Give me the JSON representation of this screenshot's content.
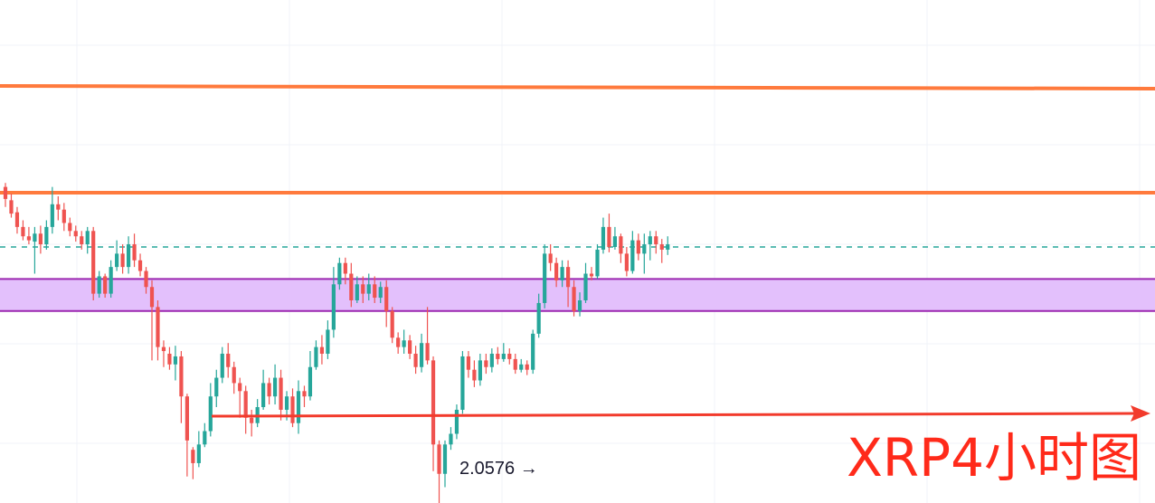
{
  "chart_data": {
    "type": "candlestick",
    "title": "XRP4小时图",
    "low_annotation": {
      "value": "2.0576",
      "arrow": "→"
    },
    "price_range_estimate": [
      2.04,
      2.4
    ],
    "grid": true,
    "resistance_lines": [
      2.38,
      2.3
    ],
    "zone": {
      "top": 2.236,
      "bottom": 2.212
    },
    "current_price_line": 2.26,
    "support_line": 2.1,
    "colors": {
      "up": "#26a69a",
      "down": "#ef5350",
      "wick_up": "#26a69a",
      "wick_down": "#ef5350",
      "zone_fill": "#e1bdfc",
      "zone_border": "#9c27b0",
      "resistance": "#ff7a3d",
      "current": "#26a69a",
      "support": "#f23b2c",
      "title": "#ff2a1a",
      "grid": "#f0f3f8"
    },
    "candles": [
      [
        2.305,
        2.296,
        2.308,
        2.29
      ],
      [
        2.295,
        2.285,
        2.3,
        2.282
      ],
      [
        2.286,
        2.275,
        2.29,
        2.27
      ],
      [
        2.275,
        2.268,
        2.28,
        2.265
      ],
      [
        2.268,
        2.265,
        2.275,
        2.262
      ],
      [
        2.264,
        2.27,
        2.275,
        2.24
      ],
      [
        2.27,
        2.262,
        2.276,
        2.255
      ],
      [
        2.262,
        2.275,
        2.28,
        2.258
      ],
      [
        2.275,
        2.292,
        2.305,
        2.27
      ],
      [
        2.292,
        2.288,
        2.298,
        2.28
      ],
      [
        2.288,
        2.278,
        2.293,
        2.272
      ],
      [
        2.278,
        2.272,
        2.282,
        2.268
      ],
      [
        2.272,
        2.268,
        2.276,
        2.264
      ],
      [
        2.268,
        2.262,
        2.272,
        2.258
      ],
      [
        2.262,
        2.272,
        2.275,
        2.255
      ],
      [
        2.272,
        2.225,
        2.275,
        2.22
      ],
      [
        2.225,
        2.238,
        2.242,
        2.222
      ],
      [
        2.238,
        2.225,
        2.24,
        2.222
      ],
      [
        2.225,
        2.245,
        2.25,
        2.222
      ],
      [
        2.245,
        2.255,
        2.265,
        2.242
      ],
      [
        2.255,
        2.245,
        2.262,
        2.24
      ],
      [
        2.245,
        2.262,
        2.268,
        2.24
      ],
      [
        2.262,
        2.25,
        2.27,
        2.245
      ],
      [
        2.25,
        2.242,
        2.255,
        2.238
      ],
      [
        2.242,
        2.23,
        2.245,
        2.225
      ],
      [
        2.23,
        2.215,
        2.235,
        2.175
      ],
      [
        2.215,
        2.185,
        2.22,
        2.175
      ],
      [
        2.185,
        2.182,
        2.19,
        2.17
      ],
      [
        2.18,
        2.172,
        2.185,
        2.168
      ],
      [
        2.172,
        2.178,
        2.186,
        2.16
      ],
      [
        2.178,
        2.148,
        2.182,
        2.128
      ],
      [
        2.148,
        2.115,
        2.15,
        2.088
      ],
      [
        2.108,
        2.098,
        2.11,
        2.086
      ],
      [
        2.098,
        2.112,
        2.122,
        2.095
      ],
      [
        2.112,
        2.122,
        2.128,
        2.11
      ],
      [
        2.122,
        2.148,
        2.158,
        2.118
      ],
      [
        2.148,
        2.162,
        2.168,
        2.14
      ],
      [
        2.162,
        2.18,
        2.185,
        2.158
      ],
      [
        2.18,
        2.17,
        2.188,
        2.162
      ],
      [
        2.17,
        2.158,
        2.174,
        2.15
      ],
      [
        2.158,
        2.152,
        2.162,
        2.132
      ],
      [
        2.152,
        2.132,
        2.156,
        2.12
      ],
      [
        2.132,
        2.128,
        2.138,
        2.118
      ],
      [
        2.128,
        2.14,
        2.146,
        2.125
      ],
      [
        2.14,
        2.158,
        2.168,
        2.138
      ],
      [
        2.158,
        2.148,
        2.162,
        2.142
      ],
      [
        2.148,
        2.162,
        2.172,
        2.142
      ],
      [
        2.162,
        2.138,
        2.168,
        2.13
      ],
      [
        2.138,
        2.148,
        2.152,
        2.13
      ],
      [
        2.148,
        2.128,
        2.154,
        2.125
      ],
      [
        2.128,
        2.152,
        2.16,
        2.12
      ],
      [
        2.152,
        2.148,
        2.156,
        2.14
      ],
      [
        2.148,
        2.17,
        2.182,
        2.145
      ],
      [
        2.17,
        2.185,
        2.19,
        2.168
      ],
      [
        2.185,
        2.18,
        2.194,
        2.172
      ],
      [
        2.18,
        2.198,
        2.205,
        2.176
      ],
      [
        2.198,
        2.232,
        2.245,
        2.192
      ],
      [
        2.232,
        2.248,
        2.252,
        2.228
      ],
      [
        2.248,
        2.24,
        2.252,
        2.232
      ],
      [
        2.24,
        2.22,
        2.248,
        2.215
      ],
      [
        2.22,
        2.232,
        2.238,
        2.218
      ],
      [
        2.232,
        2.225,
        2.238,
        2.218
      ],
      [
        2.225,
        2.232,
        2.24,
        2.22
      ],
      [
        2.232,
        2.222,
        2.238,
        2.218
      ],
      [
        2.222,
        2.23,
        2.234,
        2.218
      ],
      [
        2.23,
        2.212,
        2.235,
        2.2
      ],
      [
        2.212,
        2.192,
        2.215,
        2.188
      ],
      [
        2.192,
        2.185,
        2.196,
        2.18
      ],
      [
        2.185,
        2.19,
        2.198,
        2.18
      ],
      [
        2.19,
        2.18,
        2.194,
        2.176
      ],
      [
        2.18,
        2.17,
        2.186,
        2.165
      ],
      [
        2.17,
        2.188,
        2.195,
        2.166
      ],
      [
        2.188,
        2.175,
        2.215,
        2.172
      ],
      [
        2.175,
        2.112,
        2.178,
        2.092
      ],
      [
        2.112,
        2.09,
        2.115,
        2.058
      ],
      [
        2.09,
        2.112,
        2.115,
        2.08
      ],
      [
        2.112,
        2.12,
        2.125,
        2.108
      ],
      [
        2.12,
        2.138,
        2.142,
        2.116
      ],
      [
        2.138,
        2.178,
        2.182,
        2.135
      ],
      [
        2.178,
        2.168,
        2.182,
        2.162
      ],
      [
        2.168,
        2.16,
        2.175,
        2.155
      ],
      [
        2.16,
        2.175,
        2.18,
        2.156
      ],
      [
        2.175,
        2.17,
        2.18,
        2.165
      ],
      [
        2.17,
        2.18,
        2.184,
        2.166
      ],
      [
        2.18,
        2.176,
        2.185,
        2.172
      ],
      [
        2.176,
        2.18,
        2.188,
        2.174
      ],
      [
        2.18,
        2.176,
        2.184,
        2.172
      ],
      [
        2.176,
        2.168,
        2.18,
        2.165
      ],
      [
        2.168,
        2.172,
        2.176,
        2.166
      ],
      [
        2.172,
        2.168,
        2.175,
        2.164
      ],
      [
        2.168,
        2.195,
        2.198,
        2.165
      ],
      [
        2.195,
        2.218,
        2.225,
        2.192
      ],
      [
        2.218,
        2.255,
        2.262,
        2.214
      ],
      [
        2.255,
        2.248,
        2.262,
        2.242
      ],
      [
        2.248,
        2.235,
        2.252,
        2.23
      ],
      [
        2.235,
        2.245,
        2.25,
        2.23
      ],
      [
        2.245,
        2.23,
        2.25,
        2.215
      ],
      [
        2.23,
        2.212,
        2.235,
        2.208
      ],
      [
        2.212,
        2.22,
        2.226,
        2.208
      ],
      [
        2.22,
        2.24,
        2.248,
        2.218
      ],
      [
        2.24,
        2.238,
        2.245,
        2.235
      ],
      [
        2.238,
        2.258,
        2.262,
        2.236
      ],
      [
        2.258,
        2.275,
        2.282,
        2.255
      ],
      [
        2.275,
        2.26,
        2.285,
        2.256
      ],
      [
        2.26,
        2.268,
        2.275,
        2.258
      ],
      [
        2.268,
        2.255,
        2.27,
        2.248
      ],
      [
        2.255,
        2.242,
        2.26,
        2.238
      ],
      [
        2.242,
        2.265,
        2.272,
        2.24
      ],
      [
        2.265,
        2.255,
        2.27,
        2.25
      ],
      [
        2.255,
        2.262,
        2.27,
        2.24
      ],
      [
        2.262,
        2.268,
        2.272,
        2.25
      ],
      [
        2.268,
        2.262,
        2.272,
        2.255
      ],
      [
        2.262,
        2.258,
        2.266,
        2.248
      ],
      [
        2.258,
        2.262,
        2.268,
        2.254
      ]
    ]
  }
}
